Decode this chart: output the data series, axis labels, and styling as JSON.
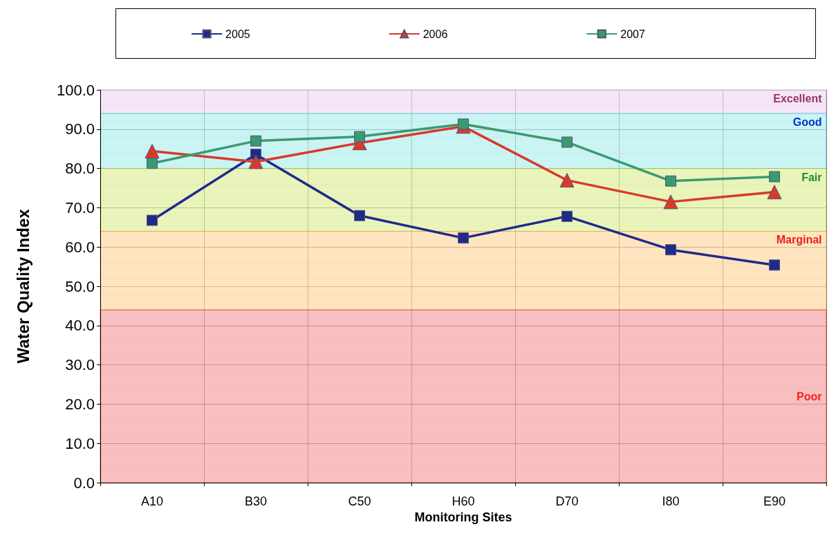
{
  "chart_data": {
    "type": "line",
    "xlabel": "Monitoring Sites",
    "ylabel": "Water Quality Index",
    "categories": [
      "A10",
      "B30",
      "C50",
      "H60",
      "D70",
      "I80",
      "E90"
    ],
    "series": [
      {
        "name": "2005",
        "color": "#1f2a8a",
        "marker": "square",
        "values": [
          66.8,
          83.6,
          68.0,
          62.3,
          67.8,
          59.3,
          55.4
        ]
      },
      {
        "name": "2006",
        "color": "#d83a2a",
        "marker": "triangle",
        "values": [
          84.4,
          81.7,
          86.5,
          90.7,
          77.0,
          71.5,
          74.0
        ]
      },
      {
        "name": "2007",
        "color": "#3a9a70",
        "marker": "square",
        "values": [
          81.3,
          87.0,
          88.1,
          91.3,
          86.7,
          76.8,
          77.9
        ]
      }
    ],
    "ylim": [
      0,
      100
    ],
    "yticks": [
      {
        "value": 0,
        "label": "0.0"
      },
      {
        "value": 10,
        "label": "10.0"
      },
      {
        "value": 20,
        "label": "20.0"
      },
      {
        "value": 30,
        "label": "30.0"
      },
      {
        "value": 40,
        "label": "40.0"
      },
      {
        "value": 50,
        "label": "50.0"
      },
      {
        "value": 60,
        "label": "60.0"
      },
      {
        "value": 70,
        "label": "70.0"
      },
      {
        "value": 80,
        "label": "80.0"
      },
      {
        "value": 90,
        "label": "90.0"
      },
      {
        "value": 100,
        "label": "100.0"
      }
    ],
    "bands": [
      {
        "axis": "y",
        "from": 94,
        "to": 100,
        "label": "Excellent",
        "color": "#f0dcf2"
      },
      {
        "axis": "y",
        "from": 80,
        "to": 94,
        "label": "Good",
        "color": "#b4eef0"
      },
      {
        "axis": "y",
        "from": 64,
        "to": 80,
        "label": "Fair",
        "color": "#def09c"
      },
      {
        "axis": "y",
        "from": 44,
        "to": 64,
        "label": "Marginal",
        "color": "#fed8a4"
      },
      {
        "axis": "y",
        "from": 0,
        "to": 44,
        "label": "Poor",
        "color": "#f4a4a4"
      }
    ],
    "grid": true,
    "legend": "top",
    "line_style": "solid"
  }
}
